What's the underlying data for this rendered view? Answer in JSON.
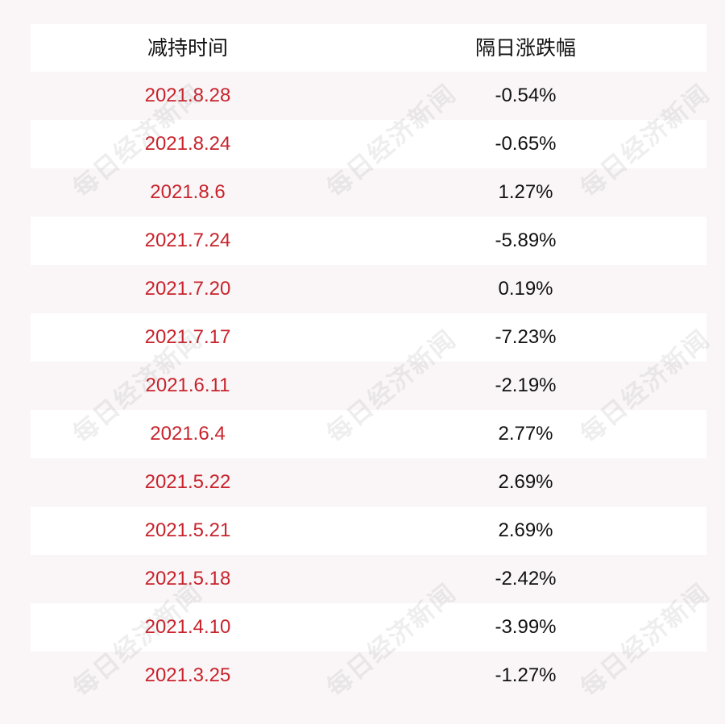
{
  "table": {
    "headers": {
      "date": "减持时间",
      "change": "隔日涨跌幅"
    },
    "rows": [
      {
        "date": "2021.8.28",
        "change": "-0.54%"
      },
      {
        "date": "2021.8.24",
        "change": "-0.65%"
      },
      {
        "date": "2021.8.6",
        "change": "1.27%"
      },
      {
        "date": "2021.7.24",
        "change": "-5.89%"
      },
      {
        "date": "2021.7.20",
        "change": "0.19%"
      },
      {
        "date": "2021.7.17",
        "change": "-7.23%"
      },
      {
        "date": "2021.6.11",
        "change": "-2.19%"
      },
      {
        "date": "2021.6.4",
        "change": "2.77%"
      },
      {
        "date": "2021.5.22",
        "change": "2.69%"
      },
      {
        "date": "2021.5.21",
        "change": "2.69%"
      },
      {
        "date": "2021.5.18",
        "change": "-2.42%"
      },
      {
        "date": "2021.4.10",
        "change": "-3.99%"
      },
      {
        "date": "2021.3.25",
        "change": "-1.27%"
      }
    ]
  },
  "watermark": {
    "text": "每日经济新闻"
  },
  "colors": {
    "date_text": "#c8232c",
    "value_text": "#111111",
    "row_white": "#ffffff",
    "row_tint": "#faf6f7"
  }
}
